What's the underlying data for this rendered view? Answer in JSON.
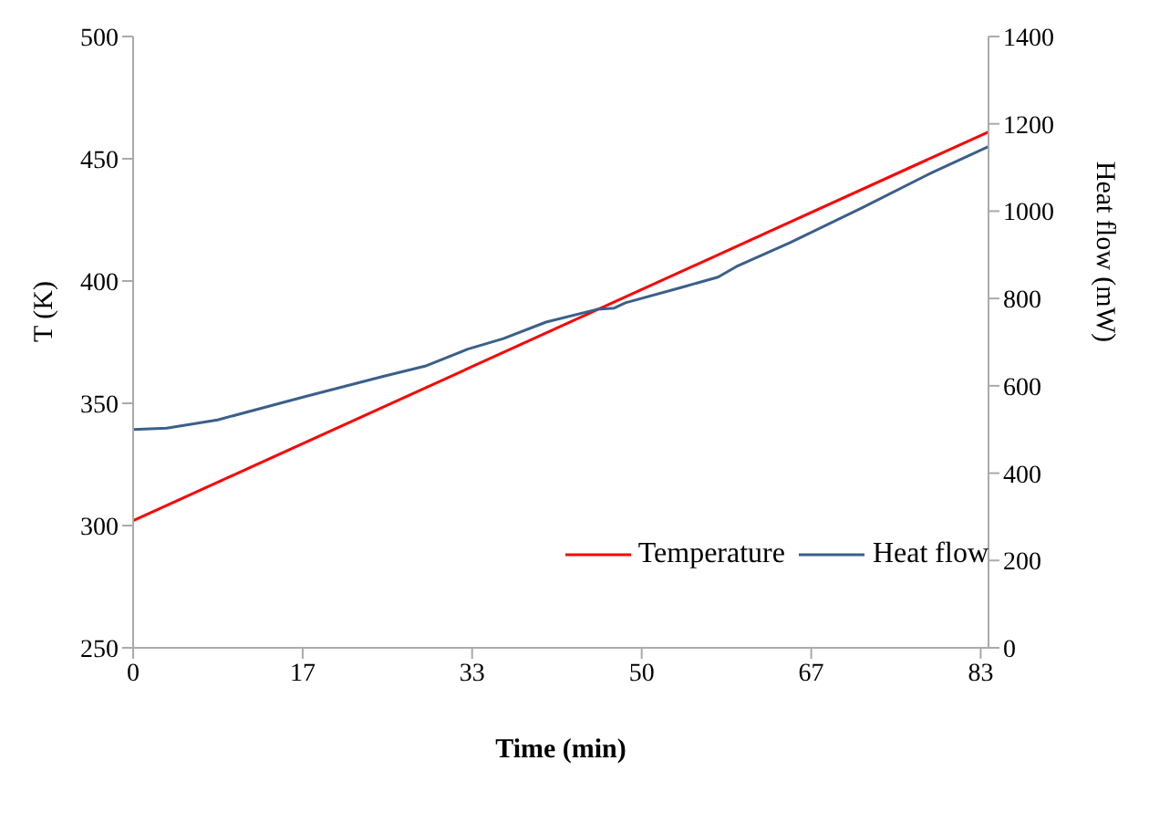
{
  "chart_data": {
    "type": "line",
    "xlabel": "Time (min)",
    "ylabel": "T (K)",
    "y2label": "Heat flow (mW)",
    "xlim": [
      0,
      84.1
    ],
    "xticks": [
      0,
      {
        "value": 16.67,
        "label": "17"
      },
      {
        "value": 33.33,
        "label": "33"
      },
      50,
      {
        "value": 66.67,
        "label": "67"
      },
      {
        "value": 83.33,
        "label": "83"
      }
    ],
    "ylim": [
      250,
      500
    ],
    "yticks": [
      250,
      300,
      350,
      400,
      450,
      500
    ],
    "y2lim": [
      0,
      1400
    ],
    "y2ticks": [
      0,
      200,
      400,
      600,
      800,
      1000,
      1200,
      1400
    ],
    "grid": false,
    "legend": "bottom right",
    "marker": "none",
    "line_style": "solid",
    "series": [
      {
        "name": "Temperature",
        "color": "#ff0000",
        "x": [
          0,
          84.1
        ],
        "values": [
          302,
          461
        ]
      },
      {
        "name": "Heat flow",
        "color": "#3b5f8a",
        "axis": "y2",
        "x": [
          0,
          3.3,
          8.3,
          16.7,
          24.5,
          28.7,
          32.9,
          36.4,
          40.6,
          45.6,
          47.3,
          48.4,
          54,
          57.5,
          59.3,
          64.6,
          71.6,
          78.6,
          84.1
        ],
        "values": [
          500,
          503,
          522,
          574,
          621,
          645,
          684,
          708,
          746,
          775,
          778,
          790,
          826,
          849,
          873,
          928,
          1007,
          1089,
          1148
        ]
      }
    ]
  }
}
